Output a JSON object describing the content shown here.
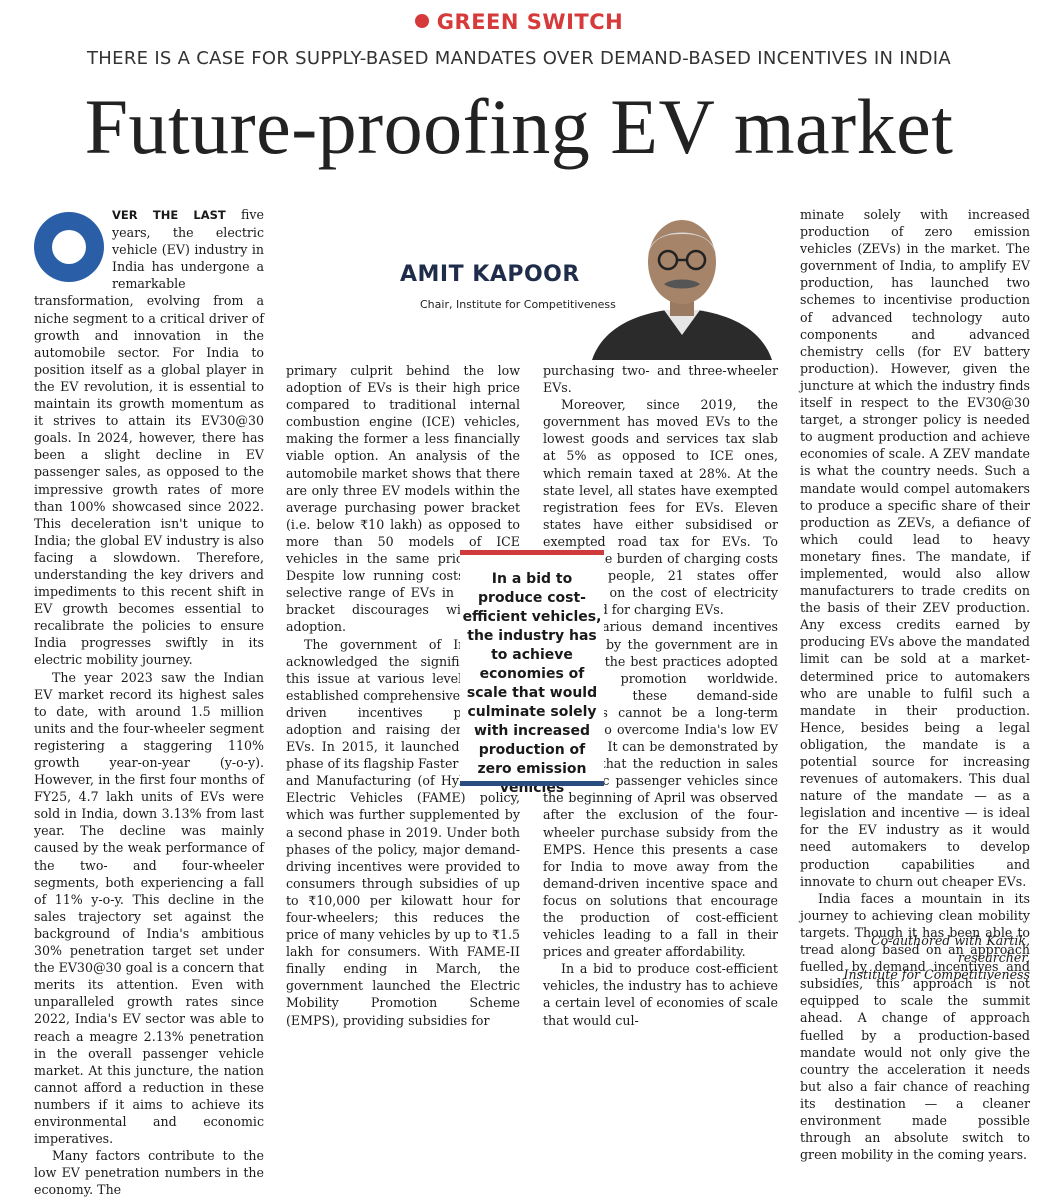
{
  "kicker": "GREEN SWITCH",
  "subheadline": "THERE IS A CASE FOR SUPPLY-BASED MANDATES OVER DEMAND-BASED INCENTIVES IN INDIA",
  "headline": "Future-proofing EV market",
  "author": {
    "name": "AMIT KAPOOR",
    "title": "Chair, Institute for Competitiveness"
  },
  "pull_quote": "In a bid to produce cost-efficient vehicles, the industry has to achieve economies of scale that would culminate solely with increased production of zero emission vehicles",
  "colors": {
    "kicker": "#d63a3a",
    "dropcap": "#2a5fa8",
    "pull_top_rule": "#cf3b3b",
    "pull_bottom_rule": "#2a4c7e",
    "author": "#1f2d4a"
  },
  "icons": {
    "dropcap": "letter-o-dropcap",
    "portrait": "author-portrait"
  },
  "col1": {
    "lead": "VER THE LAST",
    "p1_rest": " five years, the electric vehicle (EV) industry in India has undergone a remarkable transformation, evolving from a niche segment to a critical driver of growth and innovation in the automobile sector. For India to position itself as a global player in the EV revolution, it is essential to maintain its growth momentum as it strives to attain its EV30@30 goals. In 2024, however, there has been a slight decline in EV passenger sales, as opposed to the impressive growth rates of more than 100% showcased since 2022. This deceleration isn't unique to India; the global EV industry is also facing a slowdown. Therefore, understanding the key drivers and impediments to this recent shift in EV growth becomes essential to recalibrate the policies to ensure India progresses swiftly in its electric mobility journey.",
    "p2": "The year 2023 saw the Indian EV market record its highest sales to date, with around 1.5 million units and the four-wheeler segment registering a staggering 110% growth year-on-year (y-o-y). However, in the first four months of FY25, 4.7 lakh units of EVs were sold in India, down 3.13% from last year. The decline was mainly caused by the weak performance of the two- and four-wheeler segments, both experiencing a fall of 11% y-o-y. This decline in the sales trajectory set against the background of India's ambitious 30% penetration target set under the EV30@30 goal is a concern that merits its attention. Even with unparalleled growth rates since 2022, India's EV sector was able to reach a meagre 2.13% penetration in the overall passenger vehicle market. At this juncture, the nation cannot afford a reduction in these numbers if it aims to achieve its environmental and economic imperatives.",
    "p3": "Many factors contribute to the low EV penetration numbers in the economy. The"
  },
  "col2": {
    "p1": "primary culprit behind the low adoption of EVs is their high price compared to traditional internal combustion engine (ICE) vehicles, making the former a less financially viable option. An analysis of the automobile market shows that there are only three EV models within the average purchasing power bracket (i.e. below ₹10 lakh) as opposed to more than 50 models of ICE vehicles in the same price range. Despite low running costs, a very selective range of EVs in the price bracket discourages widespread adoption.",
    "p2": "The government of India has acknowledged the significance of this issue at various levels. It has established comprehensive demand-driven incentives promoting adoption and raising demand for EVs. In 2015, it launched the first phase of its flagship Faster Adoption and Manufacturing (of Hybrid and) Electric Vehicles (FAME) policy, which was further supplemented by a second phase in 2019. Under both phases of the policy, major demand-driving incentives were provided to consumers through subsidies of up to ₹10,000 per kilowatt hour for four-wheelers; this reduces the price of many vehicles by up to ₹1.5 lakh for consumers. With FAME-II finally ending in March, the government launched the Electric Mobility Promotion Scheme (EMPS), providing subsidies for"
  },
  "col3": {
    "p1": "purchasing two- and three-wheeler EVs.",
    "p2": "Moreover, since 2019, the government has moved EVs to the lowest goods and services tax slab at 5% as opposed to ICE ones, which remain taxed at 28%. At the state level, all states have exempted registration fees for EVs. Eleven states have either subsidised or exempted road tax for EVs. To reduce the burden of charging costs for the people, 21 states offer subsidies on the cost of electricity consumed for charging EVs.",
    "p3": "The various demand incentives provided by the government are in line with the best practices adopted for EV promotion worldwide. However, these demand-side incentives cannot be a long-term solution to overcome India's low EV adoption. It can be demonstrated by the fact that the reduction in sales of electric passenger vehicles since the beginning of April was observed after the exclusion of the four-wheeler purchase subsidy from the EMPS. Hence this presents a case for India to move away from the demand-driven incentive space and focus on solutions that encourage the production of cost-efficient vehicles leading to a fall in their prices and greater affordability.",
    "p4": "In a bid to produce cost-efficient vehicles, the industry has to achieve a certain level of economies of scale that would cul-"
  },
  "col4": {
    "p1": "minate solely with increased production of zero emission vehicles (ZEVs) in the market. The government of India, to amplify EV production, has launched two schemes to incentivise production of advanced technology auto components and advanced chemistry cells (for EV battery production). However, given the juncture at which the industry finds itself in respect to the EV30@30 target, a stronger policy is needed to augment production and achieve economies of scale. A ZEV mandate is what the country needs. Such a mandate would compel automakers to produce a specific share of their production as ZEVs, a defiance of which could lead to heavy monetary fines. The mandate, if implemented, would also allow manufacturers to trade credits on the basis of their ZEV production. Any excess credits earned by producing EVs above the mandated limit can be sold at a market-determined price to automakers who are unable to fulfil such a mandate in their production. Hence, besides being a legal obligation, the mandate is a potential source for increasing revenues of automakers. This dual nature of the mandate — as a legislation and incentive — is ideal for the EV industry as it would need automakers to develop production capabilities and innovate to churn out cheaper EVs.",
    "p2": "India faces a mountain in its journey to achieving clean mobility targets. Though it has been able to tread along based on an approach fuelled by demand incentives and subsidies, this approach is not equipped to scale the summit ahead. A change of approach fuelled by a production-based mandate would not only give the country the acceleration it needs but also a fair chance of reaching its destination — a cleaner environment made possible through an absolute switch to green mobility in the coming years."
  },
  "credit": {
    "line1": "Co-authored with Kartik, researcher,",
    "line2": "Institute for Competitiveness"
  }
}
